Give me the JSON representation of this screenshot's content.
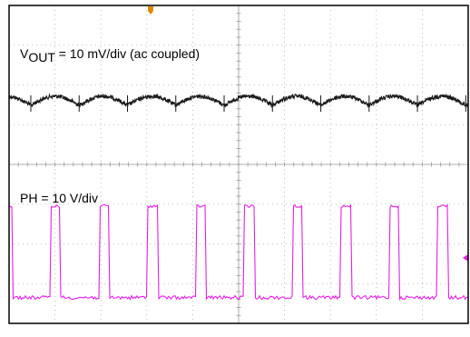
{
  "chart_data": [
    {
      "type": "line",
      "label_main": "V",
      "label_sub": "OUT",
      "label_rest": " = 10 mV/div (ac coupled)",
      "color": "#1a1a1a",
      "cycles": 9.5,
      "x_divisions": 10,
      "y_divisions": 8,
      "grid": true,
      "description_values": {
        "ripple_peak_to_peak_mV": 10,
        "spike_per_cycle": true
      }
    },
    {
      "type": "line",
      "label": "PH = 10 V/div",
      "color": "#e620e6",
      "cycles": 9.5,
      "duty_cycle": 0.2,
      "amplitude_divisions": 2.0,
      "grid": true
    }
  ],
  "colors": {
    "frame": "#000000",
    "grid": "#b0b0b0",
    "trigger_marker": "#e08a00",
    "ripple_trace": "#1a1a1a",
    "phase_trace": "#e620e6"
  }
}
